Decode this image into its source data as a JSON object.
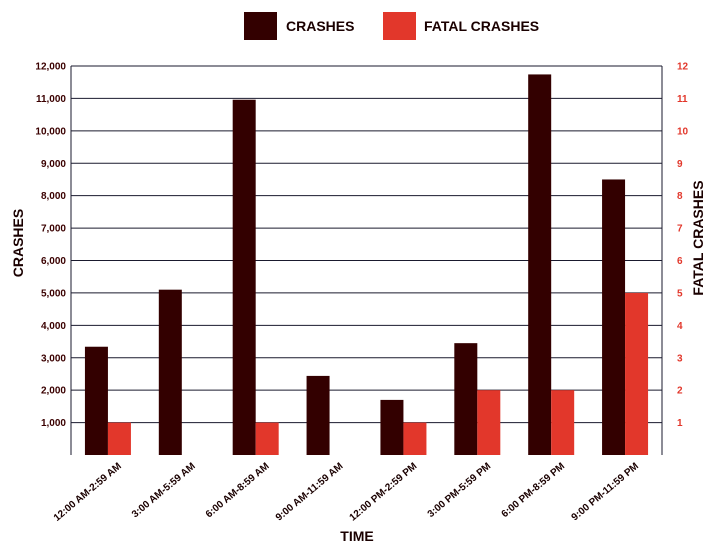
{
  "colors": {
    "crashes": "#330000",
    "fatal": "#e2372b",
    "grid": "#1a1a2e",
    "left_tick": "#3a0000",
    "right_tick": "#e2372b",
    "text": "#1a0000"
  },
  "legend": [
    {
      "label": "CRASHES",
      "color": "#330000"
    },
    {
      "label": "FATAL CRASHES",
      "color": "#e2372b"
    }
  ],
  "axes": {
    "x_title": "TIME",
    "y_left_title": "CRASHES",
    "y_right_title": "FATAL CRASHES",
    "y_left_ticks": [
      "1,000",
      "2,000",
      "3,000",
      "4,000",
      "5,000",
      "6,000",
      "7,000",
      "8,000",
      "9,000",
      "10,000",
      "11,000",
      "12,000"
    ],
    "y_right_ticks": [
      "1",
      "2",
      "3",
      "4",
      "5",
      "6",
      "7",
      "8",
      "9",
      "10",
      "11",
      "12"
    ]
  },
  "chart_data": {
    "type": "bar",
    "xlabel": "TIME",
    "ylabel": "CRASHES",
    "y2label": "FATAL CRASHES",
    "ylim": [
      0,
      12000
    ],
    "y2lim": [
      0,
      12
    ],
    "grid": true,
    "legend_position": "top",
    "categories": [
      "12:00 AM-2:59 AM",
      "3:00 AM-5:59 AM",
      "6:00 AM-8:59 AM",
      "9:00 AM-11:59 AM",
      "12:00 PM-2:59 PM",
      "3:00 PM-5:59 PM",
      "6:00 PM-8:59 PM",
      "9:00 PM-11:59 PM"
    ],
    "series": [
      {
        "name": "CRASHES",
        "axis": "left",
        "values": [
          3340,
          5100,
          10960,
          2440,
          1700,
          3450,
          11740,
          8500
        ]
      },
      {
        "name": "FATAL CRASHES",
        "axis": "right",
        "values": [
          1,
          0,
          1,
          0,
          1,
          2,
          2,
          5
        ]
      }
    ]
  }
}
